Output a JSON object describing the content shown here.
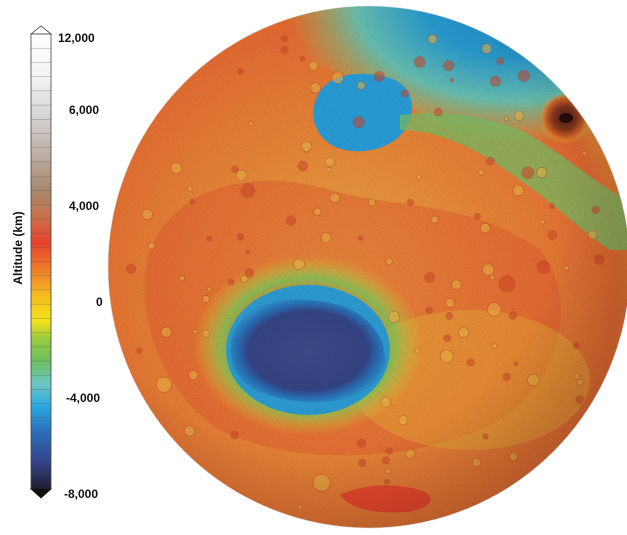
{
  "legend": {
    "axis_title": "Altitude (km)",
    "ticks": [
      {
        "label": "12,000",
        "value": 12000
      },
      {
        "label": "6,000",
        "value": 6000
      },
      {
        "label": "4,000",
        "value": 4000
      },
      {
        "label": "0",
        "value": 0
      },
      {
        "label": "-4,000",
        "value": -4000
      },
      {
        "label": "-8,000",
        "value": -8000
      }
    ],
    "colors": [
      "#1e1e2e",
      "#3a4a8a",
      "#2f6cc0",
      "#2aa3e0",
      "#74c9c0",
      "#7cc44a",
      "#c8d83a",
      "#f5e21c",
      "#f4a22a",
      "#ef6a2a",
      "#e8412c",
      "#c87a4a",
      "#9c7a5a",
      "#b0a090",
      "#d8d8d8",
      "#ffffff"
    ]
  },
  "globe": {
    "colors": {
      "basin": "#3b4f8e",
      "basin_rim": "#2a9ad8",
      "highland": "#f08a3a",
      "lowland": "#2aa0d6",
      "plains": "#f3d03a",
      "volcano": "#6a2a1c"
    }
  }
}
